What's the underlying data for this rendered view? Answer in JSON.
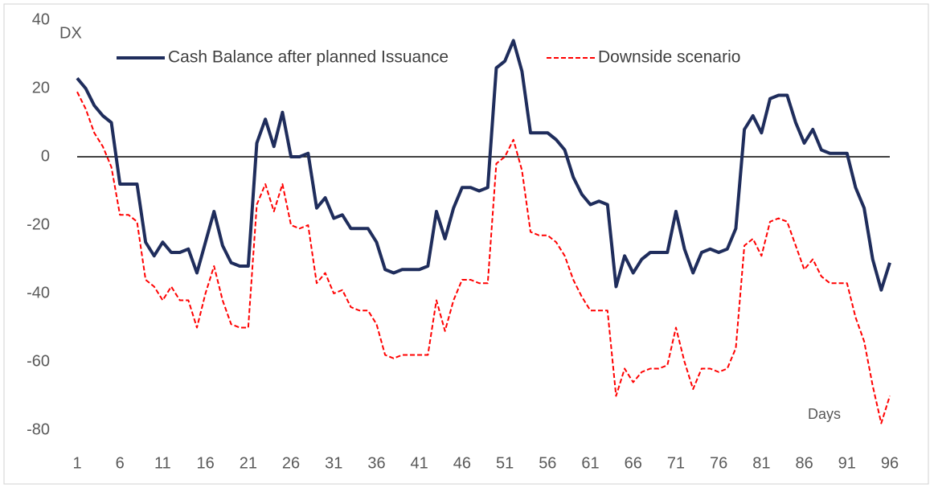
{
  "chart_data": {
    "type": "line",
    "annotations": [
      "DX",
      "Days"
    ],
    "x": [
      1,
      2,
      3,
      4,
      5,
      6,
      7,
      8,
      9,
      10,
      11,
      12,
      13,
      14,
      15,
      16,
      17,
      18,
      19,
      20,
      21,
      22,
      23,
      24,
      25,
      26,
      27,
      28,
      29,
      30,
      31,
      32,
      33,
      34,
      35,
      36,
      37,
      38,
      39,
      40,
      41,
      42,
      43,
      44,
      45,
      46,
      47,
      48,
      49,
      50,
      51,
      52,
      53,
      54,
      55,
      56,
      57,
      58,
      59,
      60,
      61,
      62,
      63,
      64,
      65,
      66,
      67,
      68,
      69,
      70,
      71,
      72,
      73,
      74,
      75,
      76,
      77,
      78,
      79,
      80,
      81,
      82,
      83,
      84,
      85,
      86,
      87,
      88,
      89,
      90,
      91,
      92,
      93,
      94,
      95,
      96
    ],
    "xlim": [
      1,
      96
    ],
    "xticks": [
      1,
      6,
      11,
      16,
      21,
      26,
      31,
      36,
      41,
      46,
      51,
      56,
      61,
      66,
      71,
      76,
      81,
      86,
      91,
      96
    ],
    "ylim": [
      -80,
      40
    ],
    "yticks": [
      -80,
      -60,
      -40,
      -20,
      0,
      20,
      40
    ],
    "zero_line": true,
    "series": [
      {
        "name": "Cash Balance after planned Issuance",
        "color": "#1f2d5c",
        "dash": false,
        "values": [
          23,
          20,
          15,
          12,
          10,
          -8,
          -8,
          -8,
          -25,
          -29,
          -25,
          -28,
          -28,
          -27,
          -34,
          -25,
          -16,
          -26,
          -31,
          -32,
          -32,
          4,
          11,
          3,
          13,
          0,
          0,
          1,
          -15,
          -12,
          -18,
          -17,
          -21,
          -21,
          -21,
          -25,
          -33,
          -34,
          -33,
          -33,
          -33,
          -32,
          -16,
          -24,
          -15,
          -9,
          -9,
          -10,
          -9,
          26,
          28,
          34,
          25,
          7,
          7,
          7,
          5,
          2,
          -6,
          -11,
          -14,
          -13,
          -14,
          -38,
          -29,
          -34,
          -30,
          -28,
          -28,
          -28,
          -16,
          -27,
          -34,
          -28,
          -27,
          -28,
          -27,
          -21,
          8,
          12,
          7,
          17,
          18,
          18,
          10,
          4,
          8,
          2,
          1,
          1,
          1,
          -9,
          -15,
          -30,
          -39,
          -31
        ]
      },
      {
        "name": "Downside scenario",
        "color": "#ff0000",
        "dash": true,
        "values": [
          19,
          14,
          7,
          3,
          -3,
          -17,
          -17,
          -19,
          -36,
          -38,
          -42,
          -38,
          -42,
          -42,
          -50,
          -40,
          -32,
          -42,
          -49,
          -50,
          -50,
          -14,
          -8,
          -16,
          -8,
          -20,
          -21,
          -20,
          -37,
          -34,
          -40,
          -39,
          -44,
          -45,
          -45,
          -49,
          -58,
          -59,
          -58,
          -58,
          -58,
          -58,
          -42,
          -51,
          -42,
          -36,
          -36,
          -37,
          -37,
          -2,
          0,
          5,
          -4,
          -22,
          -23,
          -23,
          -25,
          -29,
          -36,
          -41,
          -45,
          -45,
          -45,
          -70,
          -62,
          -66,
          -63,
          -62,
          -62,
          -61,
          -50,
          -60,
          -68,
          -62,
          -62,
          -63,
          -62,
          -56,
          -26,
          -24,
          -29,
          -19,
          -18,
          -19,
          -26,
          -33,
          -30,
          -35,
          -37,
          -37,
          -37,
          -47,
          -54,
          -67,
          -78,
          -70
        ]
      }
    ]
  }
}
